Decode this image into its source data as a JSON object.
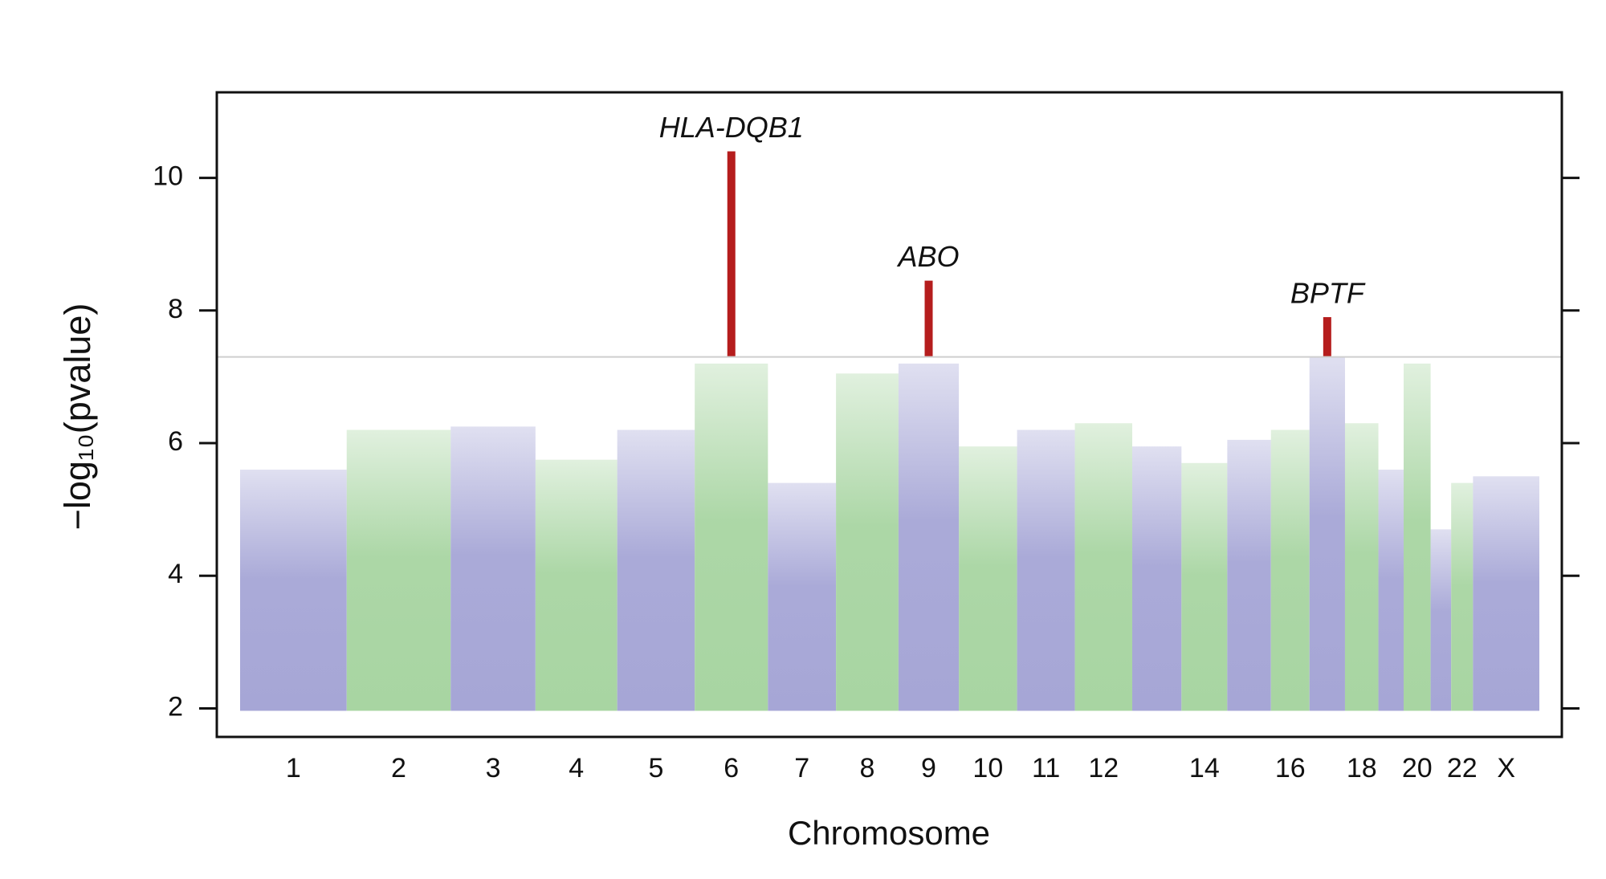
{
  "chart_data": {
    "type": "manhattan",
    "xlabel": "Chromosome",
    "ylabel": "−log₁₀(pvalue)",
    "categories": [
      "1",
      "2",
      "3",
      "4",
      "5",
      "6",
      "7",
      "8",
      "9",
      "10",
      "11",
      "12",
      null,
      "14",
      null,
      "16",
      null,
      "18",
      null,
      "20",
      null,
      "22",
      "X"
    ],
    "lengths": [
      249,
      243,
      198,
      191,
      181,
      171,
      159,
      146,
      141,
      136,
      135,
      134,
      115,
      107,
      102,
      90,
      83,
      78,
      59,
      63,
      48,
      51,
      155
    ],
    "values": [
      5.6,
      6.2,
      6.25,
      5.75,
      6.2,
      7.2,
      5.4,
      7.05,
      7.2,
      5.95,
      6.2,
      6.3,
      5.95,
      5.7,
      6.05,
      6.2,
      7.3,
      6.3,
      5.6,
      7.2,
      4.7,
      5.4,
      5.5
    ],
    "colors": [
      "#a6a6d6",
      "#a8d5a2"
    ],
    "highlight_color": "#b51d1d",
    "highlight_values": [
      null,
      null,
      null,
      null,
      null,
      10.4,
      null,
      null,
      8.45,
      null,
      null,
      null,
      null,
      null,
      null,
      null,
      7.9,
      null,
      null,
      null,
      null,
      null,
      null
    ],
    "highlight_labels": [
      null,
      null,
      null,
      null,
      null,
      "HLA-DQB1",
      null,
      null,
      "ABO",
      null,
      null,
      null,
      null,
      null,
      null,
      null,
      "BPTF",
      null,
      null,
      null,
      null,
      null,
      null
    ],
    "threshold": 7.3,
    "ylim": [
      1.57,
      11.29
    ],
    "yticks": [
      2,
      4,
      6,
      8,
      10
    ]
  }
}
